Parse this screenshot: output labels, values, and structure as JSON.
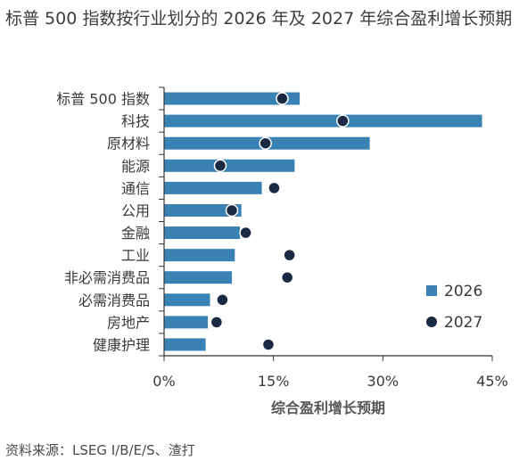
{
  "title": "标普 500 指数按行业划分的 2026 年及 2027 年综合盈利增长预期",
  "source": "资料来源：LSEG I/B/E/S、渣打",
  "colors": {
    "bar": "#3a82b3",
    "dot": "#1a2a44",
    "axis": "#333333"
  },
  "chart_data": {
    "type": "bar",
    "orientation": "horizontal",
    "title": "标普 500 指数按行业划分的 2026 年及 2027 年综合盈利增长预期",
    "xlabel": "综合盈利增长预期",
    "ylabel": "",
    "xlim": [
      0,
      45
    ],
    "x_ticks": [
      0,
      15,
      30,
      45
    ],
    "x_tick_labels": [
      "0%",
      "15%",
      "30%",
      "45%"
    ],
    "grid": false,
    "legend_position": "right",
    "categories": [
      "标普 500 指数",
      "科技",
      "原材料",
      "能源",
      "通信",
      "公用",
      "金融",
      "工业",
      "非必需消费品",
      "必需消费品",
      "房地产",
      "健康护理"
    ],
    "series": [
      {
        "name": "2026",
        "type": "bar",
        "color": "#3a82b3",
        "values": [
          18.6,
          43.6,
          28.2,
          17.9,
          13.4,
          10.6,
          10.4,
          9.7,
          9.3,
          6.3,
          6.0,
          5.7
        ]
      },
      {
        "name": "2027",
        "type": "scatter",
        "color": "#1a2a44",
        "values": [
          16.2,
          24.5,
          13.9,
          7.7,
          15.1,
          9.3,
          11.2,
          17.2,
          16.9,
          8.0,
          7.2,
          14.3
        ]
      }
    ]
  }
}
